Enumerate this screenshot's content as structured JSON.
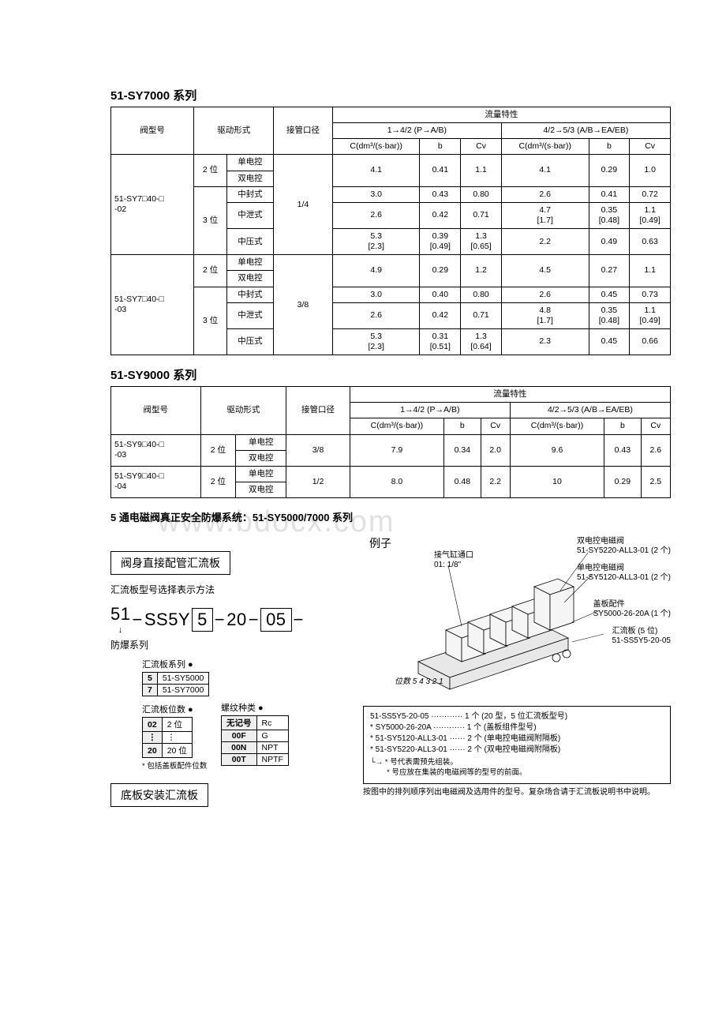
{
  "series7000": {
    "title": "51-SY7000 系列",
    "headers": {
      "model": "阀型号",
      "drive": "驱动形式",
      "port": "接管口径",
      "flow": "流量特性",
      "col1": "1→4/2 (P→A/B)",
      "col2": "4/2→5/3 (A/B→EA/EB)",
      "c": "C(dm³/(s·bar))",
      "b": "b",
      "cv": "Cv"
    },
    "groups": [
      {
        "model": "51-SY7□40-□\n-02",
        "port": "1/4",
        "rows": [
          {
            "pos": "2 位",
            "drive": "单电控",
            "c1": "4.1",
            "b1": "0.41",
            "cv1": "1.1",
            "c2": "4.1",
            "b2": "0.29",
            "cv2": "1.0",
            "merge": true
          },
          {
            "pos": "",
            "drive": "双电控"
          },
          {
            "pos": "3 位",
            "drive": "中封式",
            "c1": "3.0",
            "b1": "0.43",
            "cv1": "0.80",
            "c2": "2.6",
            "b2": "0.41",
            "cv2": "0.72"
          },
          {
            "pos": "",
            "drive": "中泄式",
            "c1": "2.6",
            "b1": "0.42",
            "cv1": "0.71",
            "c2": "4.7\n[1.7]",
            "b2": "0.35\n[0.48]",
            "cv2": "1.1\n[0.49]"
          },
          {
            "pos": "",
            "drive": "中压式",
            "c1": "5.3\n[2.3]",
            "b1": "0.39\n[0.49]",
            "cv1": "1.3\n[0.65]",
            "c2": "2.2",
            "b2": "0.49",
            "cv2": "0.63"
          }
        ]
      },
      {
        "model": "51-SY7□40-□\n-03",
        "port": "3/8",
        "rows": [
          {
            "pos": "2 位",
            "drive": "单电控",
            "c1": "4.9",
            "b1": "0.29",
            "cv1": "1.2",
            "c2": "4.5",
            "b2": "0.27",
            "cv2": "1.1",
            "merge": true
          },
          {
            "pos": "",
            "drive": "双电控"
          },
          {
            "pos": "3 位",
            "drive": "中封式",
            "c1": "3.0",
            "b1": "0.40",
            "cv1": "0.80",
            "c2": "2.6",
            "b2": "0.45",
            "cv2": "0.73"
          },
          {
            "pos": "",
            "drive": "中泄式",
            "c1": "2.6",
            "b1": "0.42",
            "cv1": "0.71",
            "c2": "4.8\n[1.7]",
            "b2": "0.35\n[0.48]",
            "cv2": "1.1\n[0.49]"
          },
          {
            "pos": "",
            "drive": "中压式",
            "c1": "5.3\n[2.3]",
            "b1": "0.31\n[0.51]",
            "cv1": "1.3\n[0.64]",
            "c2": "2.3",
            "b2": "0.45",
            "cv2": "0.66"
          }
        ]
      }
    ]
  },
  "series9000": {
    "title": "51-SY9000 系列",
    "groups": [
      {
        "model": "51-SY9□40-□\n-03",
        "port": "3/8",
        "rows": [
          {
            "pos": "2 位",
            "drive": "单电控",
            "c1": "7.9",
            "b1": "0.34",
            "cv1": "2.0",
            "c2": "9.6",
            "b2": "0.43",
            "cv2": "2.6",
            "merge": true
          },
          {
            "pos": "",
            "drive": "双电控"
          }
        ]
      },
      {
        "model": "51-SY9□40-□\n-04",
        "port": "1/2",
        "rows": [
          {
            "pos": "2 位",
            "drive": "单电控",
            "c1": "8.0",
            "b1": "0.48",
            "cv1": "2.2",
            "c2": "10",
            "b2": "0.29",
            "cv2": "2.5",
            "merge": true
          },
          {
            "pos": "",
            "drive": "双电控"
          }
        ]
      }
    ]
  },
  "subsection": "5 通电磁阀真正安全防爆系统：51-SY5000/7000 系列",
  "manifold": {
    "box1": "阀身直接配管汇流板",
    "selTitle": "汇流板型号选择表示方法",
    "part": {
      "p1": "51",
      "p2": "SS5Y",
      "p3": "5",
      "p4": "20",
      "p5": "05"
    },
    "explode": "防爆系列",
    "seriesHead": "汇流板系列 ●",
    "seriesOpts": [
      [
        "5",
        "51-SY5000"
      ],
      [
        "7",
        "51-SY7000"
      ]
    ],
    "stationsHead": "汇流板位数 ●",
    "stationsOpts": [
      [
        "02",
        "2 位"
      ],
      [
        "⋮",
        "⋮"
      ],
      [
        "20",
        "20 位"
      ]
    ],
    "stationsNote": "* 包括盖板配件位数",
    "threadHead": "螺纹种类 ●",
    "threadOpts": [
      [
        "无记号",
        "Rc"
      ],
      [
        "00F",
        "G"
      ],
      [
        "00N",
        "NPT"
      ],
      [
        "00T",
        "NPTF"
      ]
    ],
    "box2": "底板安装汇流板"
  },
  "example": {
    "title": "例子",
    "callouts": {
      "c1a": "双电控电磁阀",
      "c1b": "51-SY5220-ALL3-01 (2 个)",
      "c2a": "单电控电磁阀",
      "c2b": "51-SY5120-ALL3-01 (2 个)",
      "c3a": "接气缸通口",
      "c3b": "01: 1/8\"",
      "c4a": "盖板配件",
      "c4b": "SY5000-26-20A (1 个)",
      "c5a": "汇流板 (5 位)",
      "c5b": "51-SS5Y5-20-05",
      "c6": "位数  5 4 3 2 1"
    },
    "legend": [
      "51-SS5Y5-20-05 ············ 1 个 (20 型，5 位汇流板型号)",
      "* SY5000-26-20A ············ 1 个 (盖板组件型号)",
      "* 51-SY5120-ALL3-01 ······ 2 个 (单电控电磁阀附隔板)",
      "* 51-SY5220-ALL3-01 ······ 2 个 (双电控电磁阀附隔板)"
    ],
    "legendNotes": "└→ * 号代表需预先组装。\n        * 号应放在集装的电磁阀等的型号的前面。",
    "footer": "按图中的排列顺序列出电磁阀及选用件的型号。复杂场合请于汇流板说明书中说明。"
  },
  "watermark": "www.bdocx.com"
}
